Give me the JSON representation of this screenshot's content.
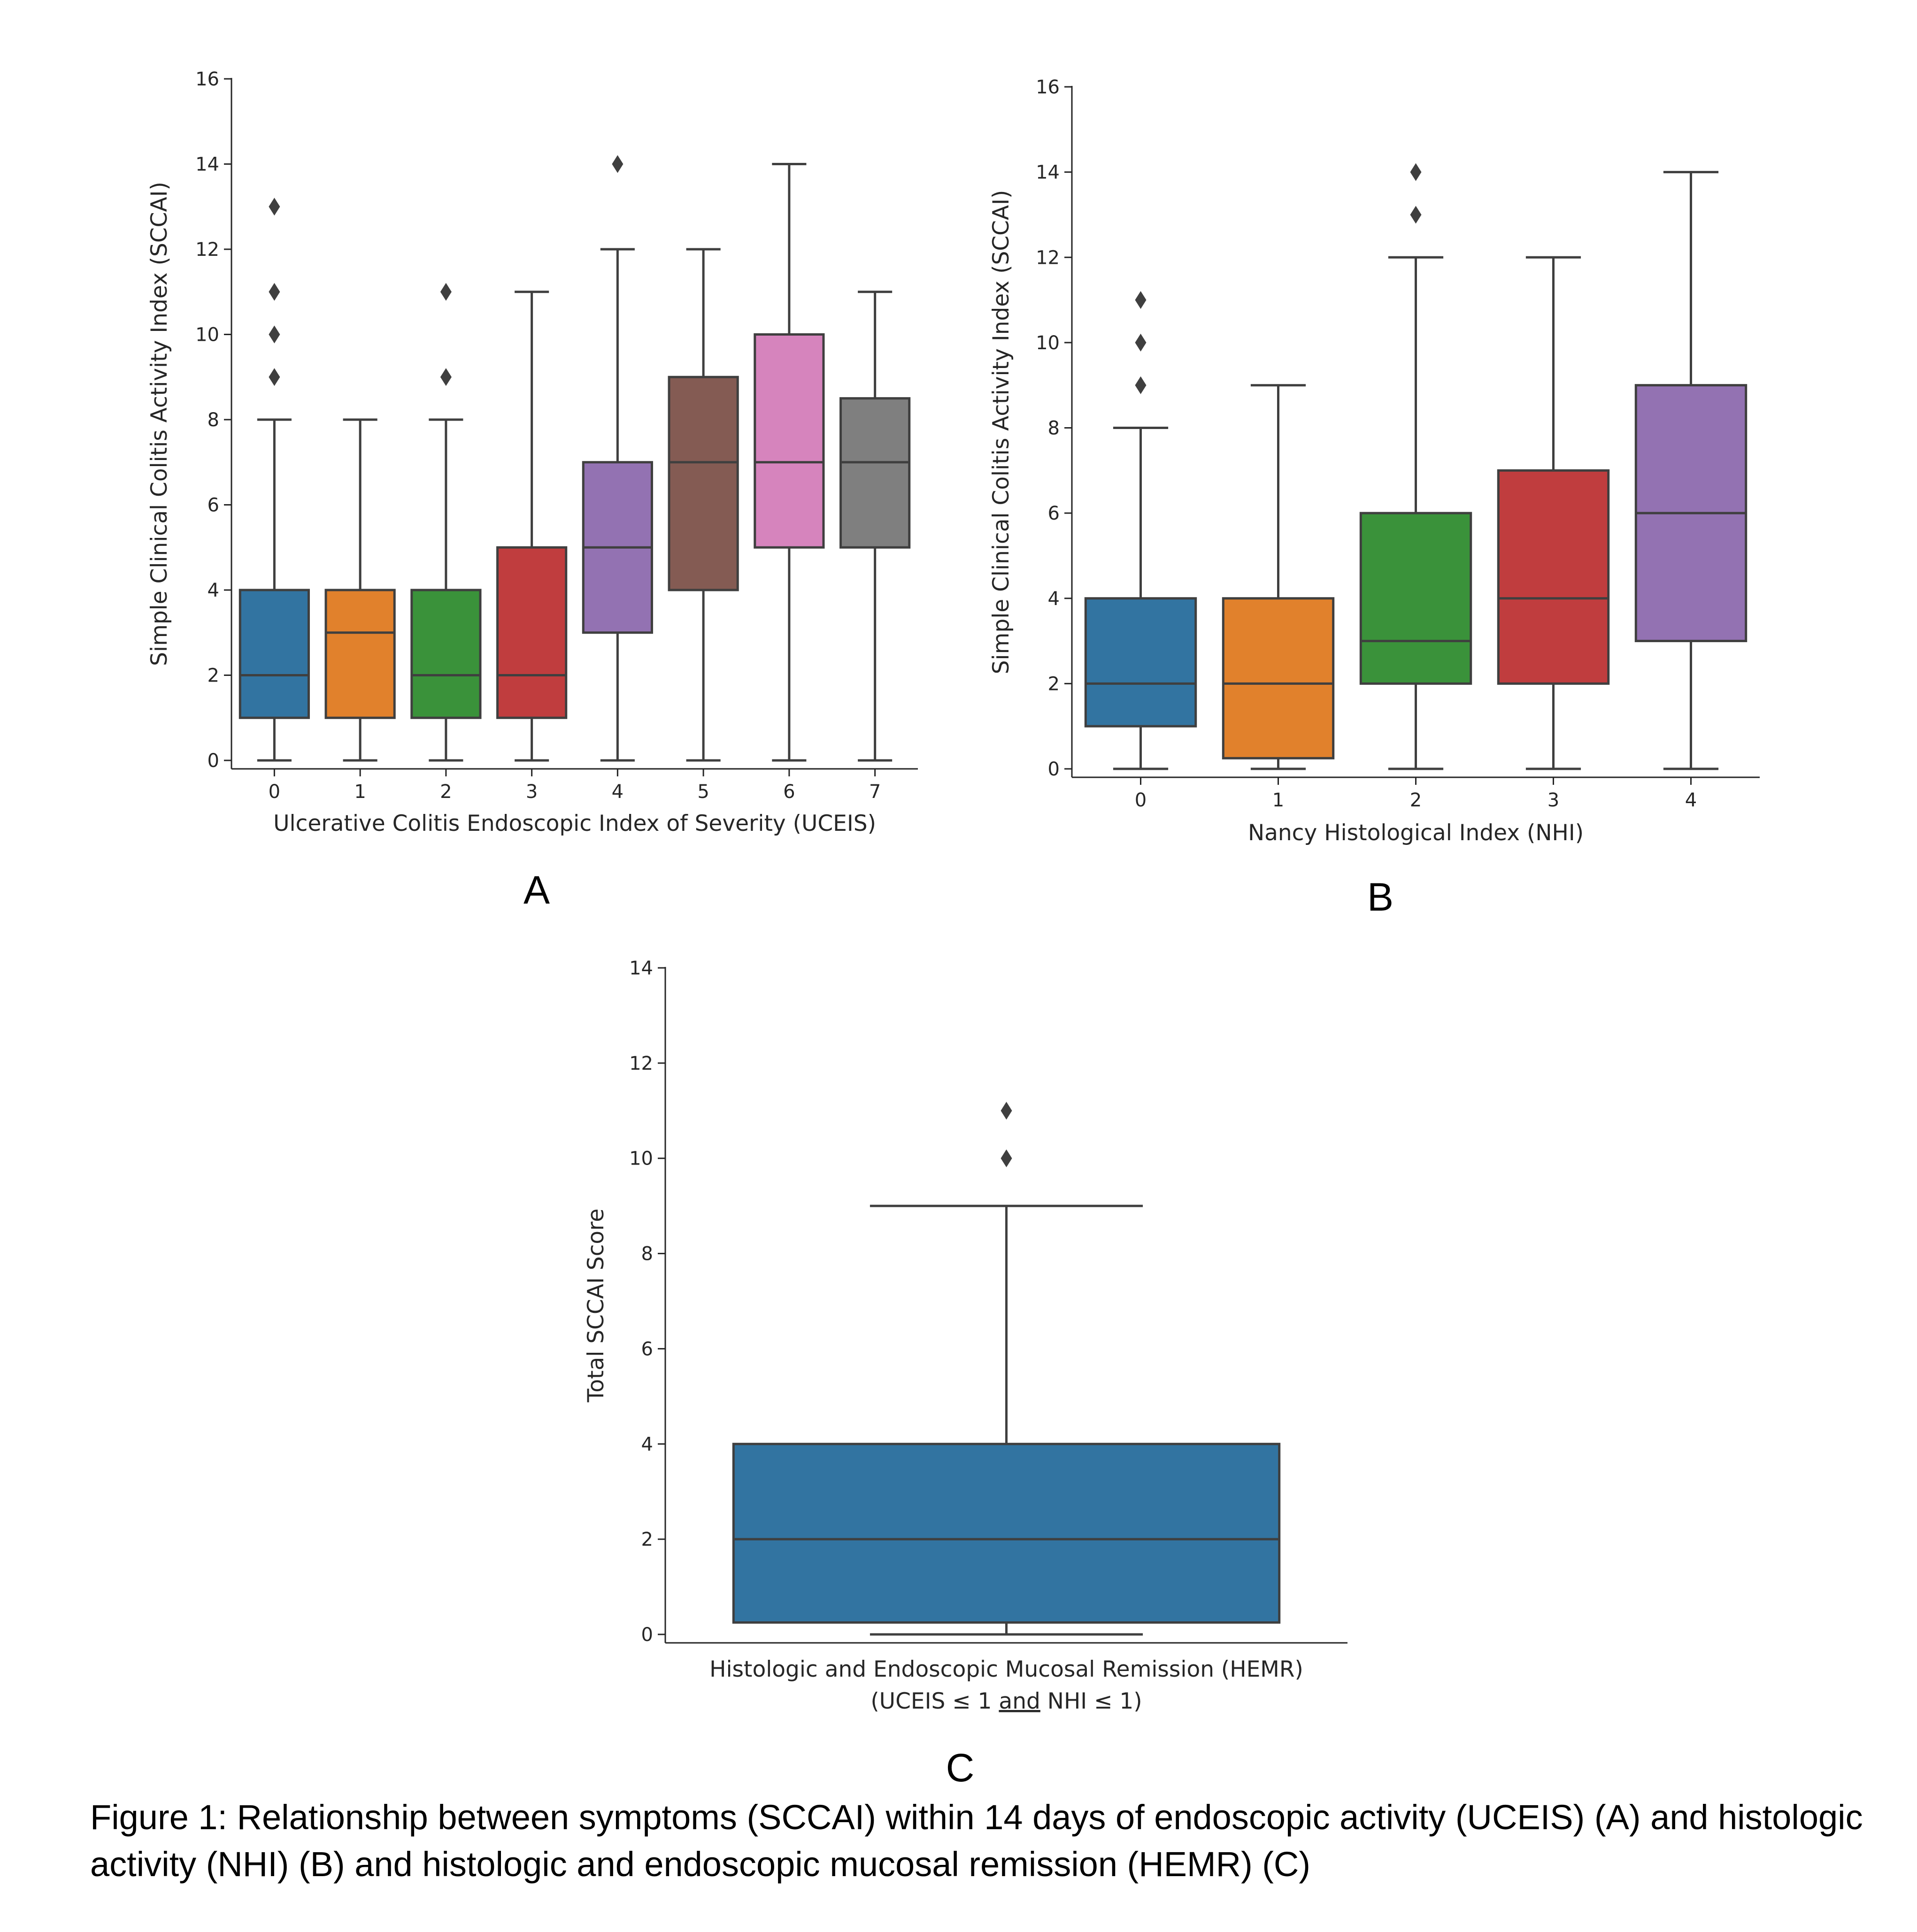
{
  "chart_data": [
    {
      "panel": "A",
      "type": "box",
      "xlabel": "Ulcerative Colitis Endoscopic Index of Severity (UCEIS)",
      "ylabel": "Simple Clinical Colitis Activity Index (SCCAI)",
      "ylim": [
        0,
        16
      ],
      "yticks": [
        0,
        2,
        4,
        6,
        8,
        10,
        12,
        14,
        16
      ],
      "categories": [
        "0",
        "1",
        "2",
        "3",
        "4",
        "5",
        "6",
        "7"
      ],
      "boxes": [
        {
          "category": "0",
          "whisker_low": 0,
          "q1": 1,
          "median": 2,
          "q3": 4,
          "whisker_high": 8,
          "outliers": [
            9,
            10,
            11,
            13
          ],
          "color": "#3274a1"
        },
        {
          "category": "1",
          "whisker_low": 0,
          "q1": 1,
          "median": 3,
          "q3": 4,
          "whisker_high": 8,
          "outliers": [],
          "color": "#e1812c"
        },
        {
          "category": "2",
          "whisker_low": 0,
          "q1": 1,
          "median": 2,
          "q3": 4,
          "whisker_high": 8,
          "outliers": [
            9,
            11
          ],
          "color": "#3a923a"
        },
        {
          "category": "3",
          "whisker_low": 0,
          "q1": 1,
          "median": 2,
          "q3": 5,
          "whisker_high": 11,
          "outliers": [],
          "color": "#c03d3e"
        },
        {
          "category": "4",
          "whisker_low": 0,
          "q1": 3,
          "median": 5,
          "q3": 7,
          "whisker_high": 12,
          "outliers": [
            14
          ],
          "color": "#9372b2"
        },
        {
          "category": "5",
          "whisker_low": 0,
          "q1": 4,
          "median": 7,
          "q3": 9,
          "whisker_high": 12,
          "outliers": [],
          "color": "#845b53"
        },
        {
          "category": "6",
          "whisker_low": 0,
          "q1": 5,
          "median": 7,
          "q3": 10,
          "whisker_high": 14,
          "outliers": [],
          "color": "#d684bd"
        },
        {
          "category": "7",
          "whisker_low": 0,
          "q1": 5,
          "median": 7,
          "q3": 8.5,
          "whisker_high": 11,
          "outliers": [],
          "color": "#7f7f7f"
        }
      ]
    },
    {
      "panel": "B",
      "type": "box",
      "xlabel": "Nancy Histological Index (NHI)",
      "ylabel": "Simple Clinical Colitis Activity Index (SCCAI)",
      "ylim": [
        0,
        16
      ],
      "yticks": [
        0,
        2,
        4,
        6,
        8,
        10,
        12,
        14,
        16
      ],
      "categories": [
        "0",
        "1",
        "2",
        "3",
        "4"
      ],
      "boxes": [
        {
          "category": "0",
          "whisker_low": 0,
          "q1": 1,
          "median": 2,
          "q3": 4,
          "whisker_high": 8,
          "outliers": [
            9,
            10,
            11
          ],
          "color": "#3274a1"
        },
        {
          "category": "1",
          "whisker_low": 0,
          "q1": 0.25,
          "median": 2,
          "q3": 4,
          "whisker_high": 9,
          "outliers": [],
          "color": "#e1812c"
        },
        {
          "category": "2",
          "whisker_low": 0,
          "q1": 2,
          "median": 3,
          "q3": 6,
          "whisker_high": 12,
          "outliers": [
            13,
            14
          ],
          "color": "#3a923a"
        },
        {
          "category": "3",
          "whisker_low": 0,
          "q1": 2,
          "median": 4,
          "q3": 7,
          "whisker_high": 12,
          "outliers": [],
          "color": "#c03d3e"
        },
        {
          "category": "4",
          "whisker_low": 0,
          "q1": 3,
          "median": 6,
          "q3": 9,
          "whisker_high": 14,
          "outliers": [],
          "color": "#9372b2"
        }
      ]
    },
    {
      "panel": "C",
      "type": "box",
      "xlabel_line1": "Histologic and Endoscopic Mucosal Remission (HEMR)",
      "xlabel_line2_parts": [
        "(UCEIS ≤ 1 ",
        "and",
        " NHI ≤ 1)"
      ],
      "ylabel": "Total SCCAI Score",
      "ylim": [
        0,
        14
      ],
      "yticks": [
        0,
        2,
        4,
        6,
        8,
        10,
        12,
        14
      ],
      "categories": [
        ""
      ],
      "boxes": [
        {
          "category": "",
          "whisker_low": 0,
          "q1": 0.25,
          "median": 2,
          "q3": 4,
          "whisker_high": 9,
          "outliers": [
            10,
            11
          ],
          "color": "#3274a1"
        }
      ]
    }
  ],
  "panel_letters": [
    "A",
    "B",
    "C"
  ],
  "caption": "Figure 1: Relationship between symptoms (SCCAI) within 14 days of endoscopic activity (UCEIS) (A) and histologic activity (NHI) (B) and histologic and endoscopic mucosal remission (HEMR) (C)",
  "colors": {
    "axis": "#262626",
    "box_edge": "#3f3f3f"
  }
}
